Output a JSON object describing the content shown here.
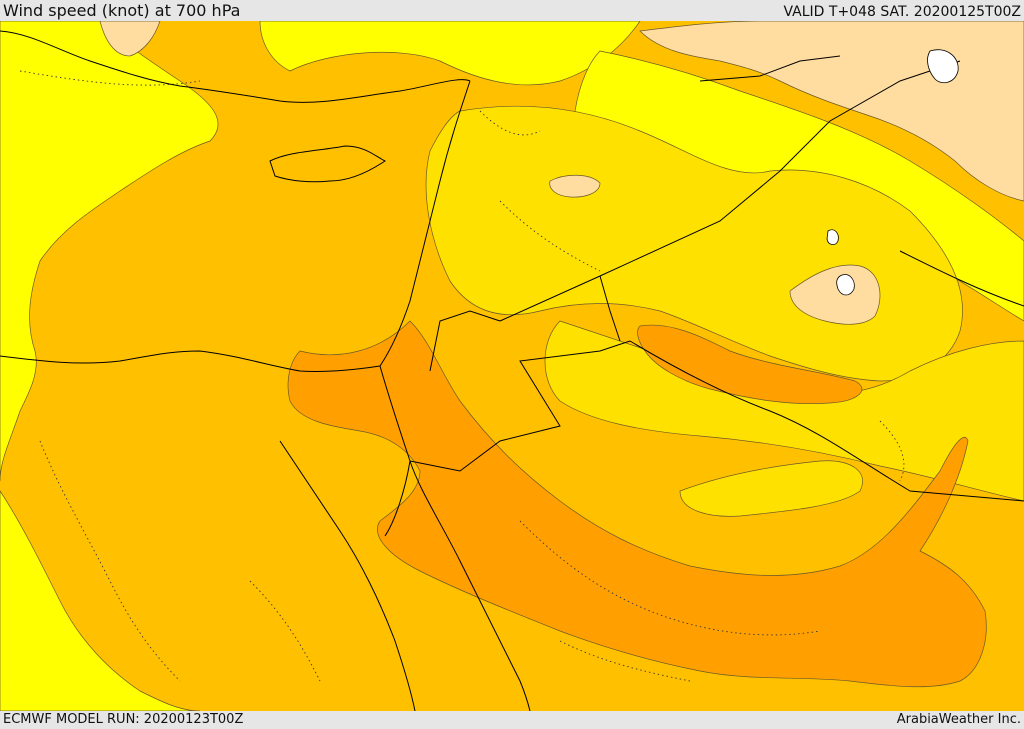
{
  "header": {
    "title": "Wind speed (knot) at 700 hPa",
    "valid": "VALID T+048 SAT. 20200125T00Z"
  },
  "footer": {
    "model_run": "ECMWF MODEL RUN: 20200123T00Z",
    "credit": "ArabiaWeather Inc."
  },
  "map": {
    "field": "wind-speed-700hpa",
    "palette": {
      "lowest": "#FFFF00",
      "low": "#FFE100",
      "mid": "#FFC000",
      "high": "#FF9F00",
      "calm": "#FFDCA0",
      "water": "#FFFFFF",
      "contour": "#6b5a2a",
      "border": "#000000"
    }
  }
}
